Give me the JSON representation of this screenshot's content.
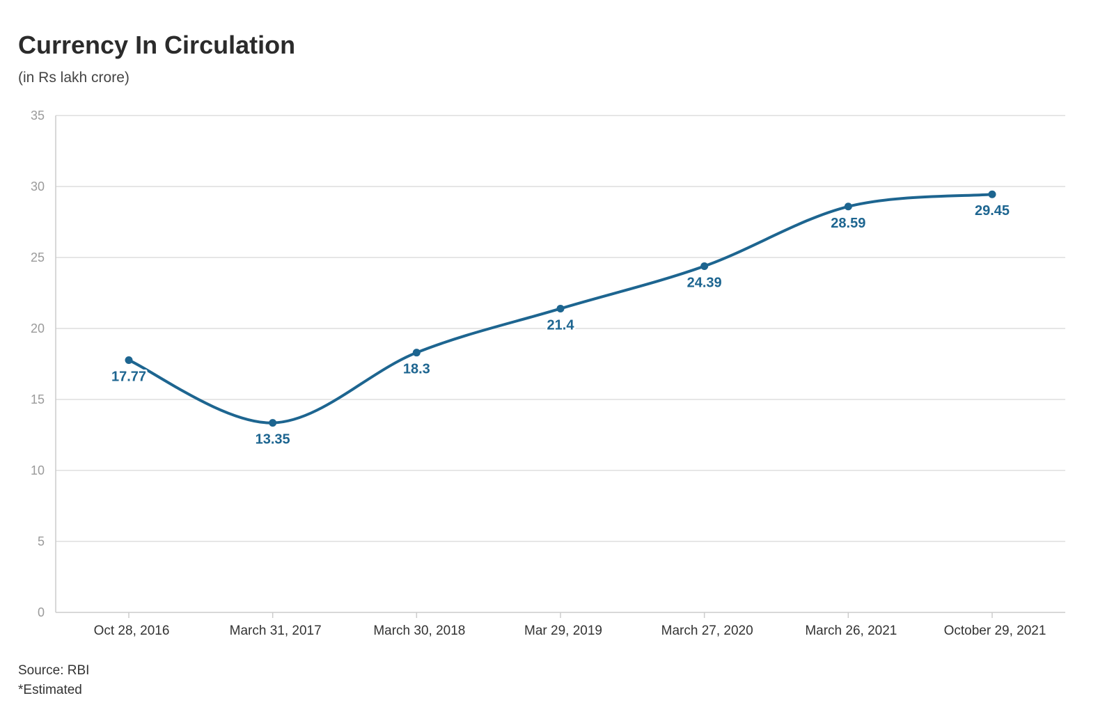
{
  "chart_data": {
    "type": "line",
    "title": "Currency In Circulation",
    "subtitle": "(in Rs lakh crore)",
    "categories": [
      "Oct 28, 2016",
      "March 31, 2017",
      "March 30, 2018",
      "Mar 29, 2019",
      "March 27, 2020",
      "March 26, 2021",
      "October 29, 2021"
    ],
    "series": [
      {
        "values": [
          17.77,
          13.35,
          18.3,
          21.4,
          24.39,
          28.59,
          29.45
        ],
        "data_labels": [
          "17.77",
          "13.35",
          "18.3",
          "21.4",
          "24.39",
          "28.59",
          "29.45"
        ],
        "color": "#1d6590"
      }
    ],
    "xlabel": "",
    "ylabel": "",
    "ylim": [
      0,
      35
    ],
    "yticks": [
      0,
      5,
      10,
      15,
      20,
      25,
      30,
      35
    ],
    "grid": true,
    "legend": "none",
    "source": "Source: RBI",
    "note": "*Estimated"
  },
  "colors": {
    "line": "#1d6590",
    "grid": "#e6e6e6",
    "axis": "#cccccc"
  }
}
